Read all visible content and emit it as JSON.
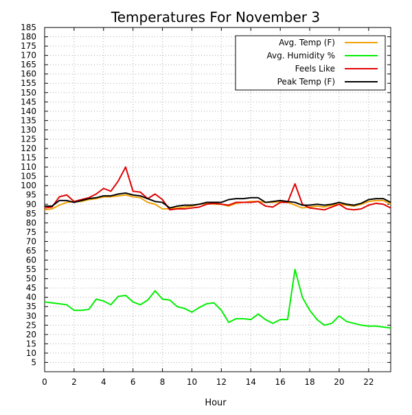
{
  "chart_data": {
    "type": "line",
    "title": "Temperatures For November 3",
    "xlabel": "Hour",
    "ylabel": "",
    "xlim": [
      0,
      23.5
    ],
    "ylim": [
      0,
      185
    ],
    "x_ticks": [
      0,
      2,
      4,
      6,
      8,
      10,
      12,
      14,
      16,
      18,
      20,
      22
    ],
    "y_ticks": [
      5,
      10,
      15,
      20,
      25,
      30,
      35,
      40,
      45,
      50,
      55,
      60,
      65,
      70,
      75,
      80,
      85,
      90,
      95,
      100,
      105,
      110,
      115,
      120,
      125,
      130,
      135,
      140,
      145,
      150,
      155,
      160,
      165,
      170,
      175,
      180,
      185
    ],
    "grid": true,
    "legend_position": "top-right",
    "x": [
      0,
      0.5,
      1,
      1.5,
      2,
      2.5,
      3,
      3.5,
      4,
      4.5,
      5,
      5.5,
      6,
      6.5,
      7,
      7.5,
      8,
      8.5,
      9,
      9.5,
      10,
      10.5,
      11,
      11.5,
      12,
      12.5,
      13,
      13.5,
      14,
      14.5,
      15,
      15.5,
      16,
      16.5,
      17,
      17.5,
      18,
      18.5,
      19,
      19.5,
      20,
      20.5,
      21,
      21.5,
      22,
      22.5,
      23,
      23.5
    ],
    "series": [
      {
        "name": "Avg. Temp (F)",
        "color": "#f0a000",
        "values": [
          87,
          87.5,
          89.5,
          91,
          91.5,
          91.5,
          92.5,
          93,
          94,
          94,
          94.5,
          95,
          94,
          93.5,
          91,
          90,
          87.5,
          87.5,
          88,
          88.5,
          89,
          90,
          90.5,
          90,
          90,
          89,
          90.5,
          91,
          91.5,
          91.5,
          91,
          91,
          91.5,
          91,
          89.5,
          88,
          88.5,
          89,
          88.5,
          89.5,
          90,
          89.5,
          89,
          90,
          91.5,
          92,
          92,
          90
        ]
      },
      {
        "name": "Avg. Humidity %",
        "color": "#00ee00",
        "values": [
          37.5,
          37,
          36.5,
          36,
          33,
          33,
          33.5,
          39,
          38,
          36,
          40.5,
          41,
          37.5,
          36,
          38.5,
          43.5,
          39,
          38.5,
          35,
          34,
          32,
          34.5,
          36.5,
          37,
          33,
          26.5,
          28.5,
          28.5,
          28,
          31,
          28,
          26,
          28,
          28,
          55,
          40,
          33,
          28,
          25,
          26,
          30,
          27,
          26,
          25,
          24.5,
          24.5,
          24,
          23.5
        ]
      },
      {
        "name": "Feels Like",
        "color": "#e00000",
        "values": [
          88,
          88.5,
          94,
          95,
          91.5,
          92.5,
          93.5,
          95.5,
          98.5,
          97,
          102.5,
          110,
          97,
          96.5,
          93,
          95.5,
          92.5,
          87,
          87.5,
          87.5,
          88,
          88.5,
          90,
          90.5,
          90,
          89.5,
          91,
          91,
          91,
          91.5,
          89,
          88.5,
          91,
          91,
          101,
          90,
          88,
          87.5,
          87,
          88.5,
          90,
          87.5,
          87,
          87.5,
          89.5,
          90.5,
          90,
          88
        ]
      },
      {
        "name": "Peak Temp (F)",
        "color": "#000000",
        "values": [
          89,
          89,
          92,
          92,
          91,
          92,
          93,
          93.5,
          94.5,
          94.5,
          95.5,
          96,
          95,
          94.5,
          93,
          91.5,
          91,
          88,
          89,
          89.5,
          89.5,
          90,
          91,
          91,
          91,
          92.5,
          93,
          93,
          93.5,
          93.5,
          91,
          91.5,
          92,
          91.5,
          91,
          89.5,
          89.5,
          90,
          89.5,
          90,
          91,
          90,
          89.5,
          90.5,
          92.5,
          93,
          93,
          91
        ]
      }
    ]
  }
}
